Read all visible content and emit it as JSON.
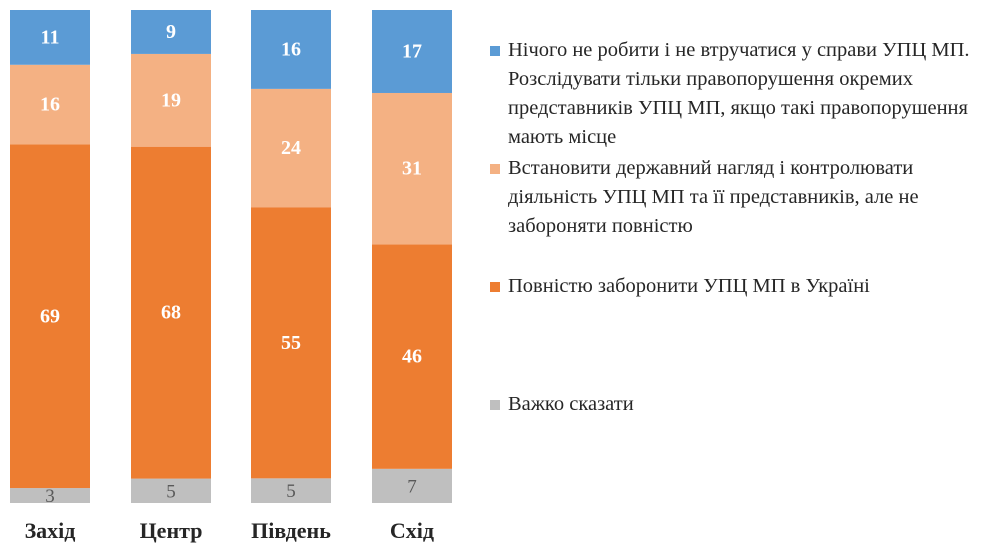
{
  "chart_data": {
    "type": "bar",
    "stacked": true,
    "percent": true,
    "categories": [
      "Захід",
      "Центр",
      "Південь",
      "Схід"
    ],
    "series": [
      {
        "name": "Важко сказати",
        "color": "#bfbfbf",
        "values": [
          3,
          5,
          5,
          7
        ]
      },
      {
        "name": "Повністю заборонити УПЦ МП в Україні",
        "color": "#ed7d31",
        "values": [
          69,
          68,
          55,
          46
        ]
      },
      {
        "name": "Встановити державний нагляд і контролювати діяльність УПЦ МП та її представників, але не забороняти повністю",
        "color": "#f4b183",
        "values": [
          16,
          19,
          24,
          31
        ]
      },
      {
        "name": "Нічого не робити і не втручатися у справи УПЦ МП. Розслідувати тільки правопорушення окремих представників УПЦ МП, якщо такі правопорушення мають місце",
        "color": "#5b9bd5",
        "values": [
          11,
          9,
          16,
          17
        ]
      }
    ],
    "ylim": [
      0,
      100
    ],
    "legend": {
      "position": "right",
      "order": [
        "Нічого не робити і не втручатися у справи УПЦ МП. Розслідувати тільки правопорушення окремих представників УПЦ МП, якщо такі правопорушення мають місце",
        "Встановити державний нагляд і контролювати діяльність УПЦ МП та її представників, але не забороняти повністю",
        "Повністю заборонити УПЦ МП в Україні",
        "Важко сказати"
      ]
    },
    "grid": false
  }
}
